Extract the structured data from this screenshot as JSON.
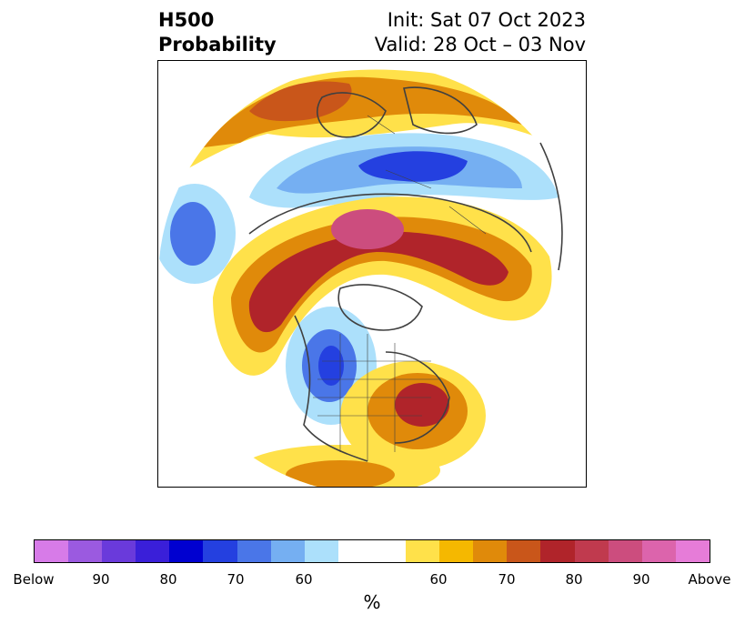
{
  "title": {
    "left_line1": "H500",
    "left_line2": "Probability",
    "right_line1": "Init: Sat 07 Oct 2023",
    "right_line2": "Valid: 28 Oct – 03 Nov"
  },
  "colorbar": {
    "unit": "%",
    "colors": [
      "#d77be8",
      "#9b5ae0",
      "#6a3adb",
      "#3a1fd9",
      "#0000d0",
      "#2440e0",
      "#4a76e8",
      "#75aff2",
      "#ace0fb",
      "#ffffff",
      "#ffffff",
      "#ffe14a",
      "#f5b800",
      "#e08a0a",
      "#c9561a",
      "#b0242a",
      "#c03a4e",
      "#cc4d7e",
      "#dc64ac",
      "#e67cd8"
    ],
    "tick_labels": [
      "Below",
      "90",
      "80",
      "70",
      "60",
      "60",
      "70",
      "80",
      "90",
      "Above"
    ]
  },
  "legend_colors": {
    "above_strong": "#d64a8a",
    "above_high": "#b0242a",
    "above_mid": "#e08a0a",
    "above_low": "#ffe14a",
    "below_low": "#ace0fb",
    "below_mid": "#4a76e8",
    "below_high": "#2440e0"
  }
}
